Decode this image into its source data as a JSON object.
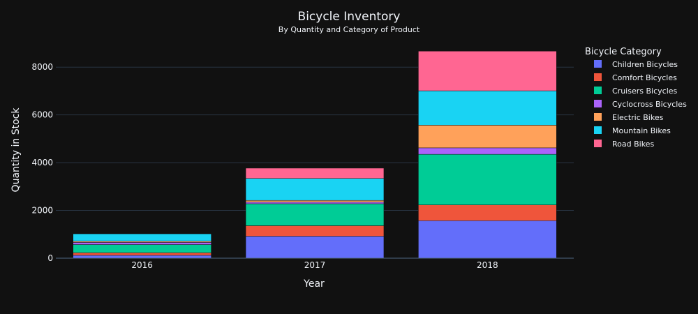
{
  "chart_data": {
    "type": "bar",
    "barmode": "stack",
    "title": "Bicycle Inventory",
    "subtitle": "By Quantity and Category of Product",
    "xlabel": "Year",
    "ylabel": "Quantity in Stock",
    "categories": [
      "2016",
      "2017",
      "2018"
    ],
    "ylim": [
      0,
      9000
    ],
    "yticks": [
      0,
      2000,
      4000,
      6000,
      8000
    ],
    "ytick_labels": [
      "0",
      "2000",
      "4000",
      "6000",
      "8000"
    ],
    "grid": true,
    "legend": {
      "title": "Bicycle Category",
      "placement": "right"
    },
    "series": [
      {
        "name": "Children Bicycles",
        "color": "#636efa",
        "values": [
          120,
          920,
          1570
        ]
      },
      {
        "name": "Comfort Bicycles",
        "color": "#ef553b",
        "values": [
          110,
          440,
          660
        ]
      },
      {
        "name": "Cruisers Bicycles",
        "color": "#00cc96",
        "values": [
          340,
          920,
          2120
        ]
      },
      {
        "name": "Cyclocross Bicycles",
        "color": "#ab63fa",
        "values": [
          90,
          70,
          270
        ]
      },
      {
        "name": "Electric Bikes",
        "color": "#ffa15a",
        "values": [
          50,
          70,
          950
        ]
      },
      {
        "name": "Mountain Bikes",
        "color": "#19d3f3",
        "values": [
          310,
          920,
          1440
        ]
      },
      {
        "name": "Road Bikes",
        "color": "#ff6692",
        "values": [
          0,
          430,
          1660
        ]
      }
    ]
  },
  "colors": {
    "background": "#111111",
    "grid": "#283442",
    "axis_line": "#506784",
    "text": "#f2f5fa"
  }
}
